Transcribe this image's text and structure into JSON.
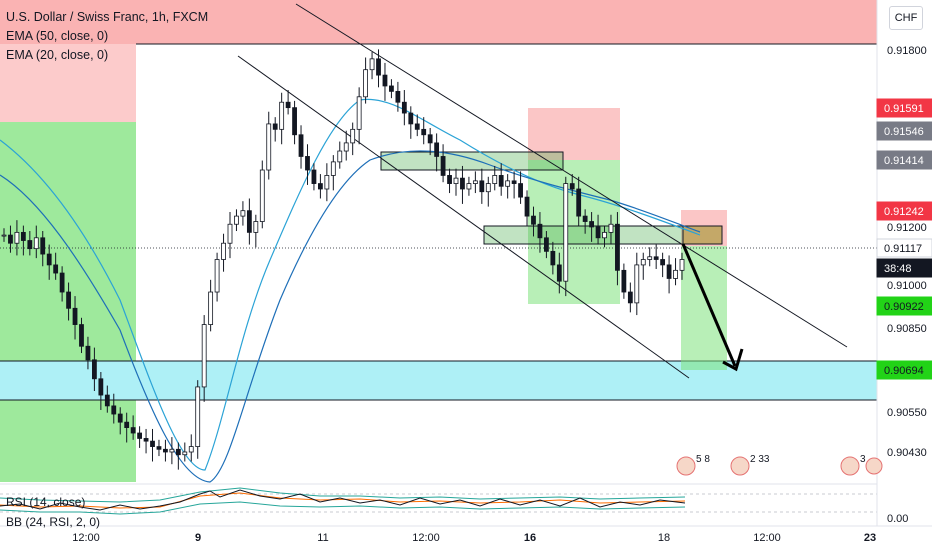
{
  "window": {
    "symbol_title": "U.S. Dollar / Swiss Franc, 1h, FXCM",
    "currency_button": "CHF"
  },
  "indicators": {
    "ema50": "EMA (50, close, 0)",
    "ema20": "EMA (20, close, 0)",
    "rsi": "RSI (14, close)",
    "bb": "BB (24, RSI, 2, 0)"
  },
  "price_axis": {
    "ticks": [
      "0.91800",
      "0.91200",
      "0.91000",
      "0.90850",
      "0.90550",
      "0.90430",
      "0.00"
    ],
    "tags": [
      {
        "label": "0.91591",
        "color": "#f23645",
        "text": "#ffffff"
      },
      {
        "label": "0.91546",
        "color": "#787b86",
        "text": "#ffffff"
      },
      {
        "label": "0.91414",
        "color": "#787b86",
        "text": "#ffffff"
      },
      {
        "label": "0.91242",
        "color": "#f23645",
        "text": "#ffffff"
      },
      {
        "label": "0.91117",
        "color": "#ffffff",
        "text": "#131722"
      },
      {
        "label": "38:48",
        "color": "#131722",
        "text": "#ffffff"
      },
      {
        "label": "0.90922",
        "color": "#22d317",
        "text": "#131722"
      },
      {
        "label": "0.90694",
        "color": "#22d317",
        "text": "#131722"
      }
    ]
  },
  "time_axis": {
    "ticks": [
      "12:00",
      "9",
      "11",
      "12:00",
      "16",
      "18",
      "12:00",
      "23"
    ]
  },
  "events": [
    {
      "badges": "5  8"
    },
    {
      "badges": "2  33"
    },
    {
      "badges": "3"
    }
  ],
  "colors": {
    "candle": "#131722",
    "ema": "#2ba3d6",
    "support_zone": "#aef0f6",
    "stop_zone": "#f9a0a0",
    "target_zone": "#7ee27b",
    "channel": "#131722"
  },
  "chart_data": {
    "type": "candlestick",
    "title": "U.S. Dollar / Swiss Franc, 1h, FXCM",
    "ylim": [
      0.9041,
      0.919
    ],
    "annotations": [
      "descending channel",
      "support zone 0.90694",
      "short position 0.91117 → 0.90694"
    ],
    "close_series": [
      0.9121,
      0.9118,
      0.9122,
      0.9119,
      0.9116,
      0.912,
      0.9114,
      0.911,
      0.9107,
      0.91,
      0.9094,
      0.9088,
      0.908,
      0.9075,
      0.9068,
      0.9062,
      0.9058,
      0.9055,
      0.9052,
      0.905,
      0.9048,
      0.9046,
      0.9045,
      0.9043,
      0.9042,
      0.9041,
      0.9042,
      0.904,
      0.9041,
      0.9043,
      0.9065,
      0.9088,
      0.91,
      0.9112,
      0.9118,
      0.9125,
      0.9128,
      0.913,
      0.9122,
      0.9126,
      0.9145,
      0.9162,
      0.916,
      0.917,
      0.9168,
      0.9158,
      0.915,
      0.9145,
      0.914,
      0.9138,
      0.9143,
      0.9148,
      0.9152,
      0.9155,
      0.916,
      0.9172,
      0.9182,
      0.9186,
      0.918,
      0.9176,
      0.9174,
      0.917,
      0.9166,
      0.9162,
      0.916,
      0.9158,
      0.9155,
      0.915,
      0.9143,
      0.914,
      0.9142,
      0.9138,
      0.914,
      0.9141,
      0.9137,
      0.914,
      0.9143,
      0.9139,
      0.9141,
      0.914,
      0.9135,
      0.9128,
      0.9125,
      0.912,
      0.9115,
      0.911,
      0.9104,
      0.914,
      0.9138,
      0.9128,
      0.9126,
      0.9124,
      0.912,
      0.9122,
      0.9125,
      0.9108,
      0.91,
      0.9096,
      0.911,
      0.9112,
      0.9113,
      0.9112,
      0.911,
      0.9105,
      0.9108,
      0.9112
    ]
  }
}
